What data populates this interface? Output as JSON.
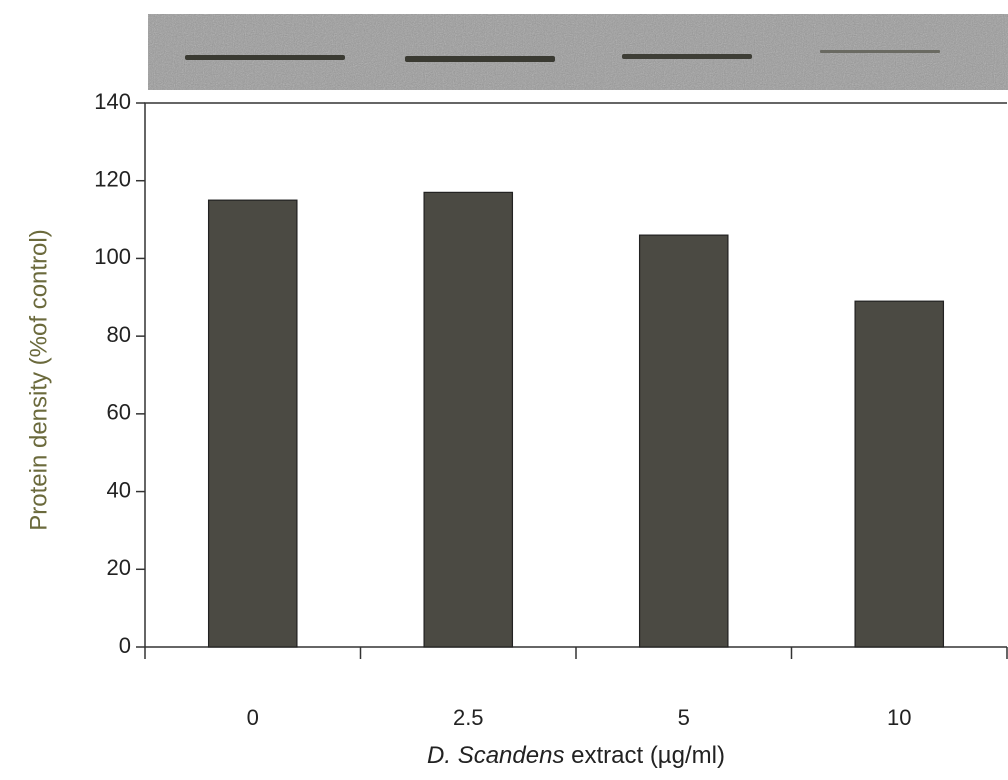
{
  "chart_data": {
    "type": "bar",
    "categories": [
      "0",
      "2.5",
      "5",
      "10"
    ],
    "values": [
      115,
      117,
      106,
      89
    ],
    "color": "#4b4a43",
    "ylabel": "Protein density (%of control)",
    "xlabel": {
      "italic": "D. Scandens",
      "text": "extract (µg/ml)"
    },
    "ylim": [
      0,
      140
    ],
    "yticks": [
      0,
      20,
      40,
      60,
      80,
      100,
      120,
      140
    ]
  }
}
